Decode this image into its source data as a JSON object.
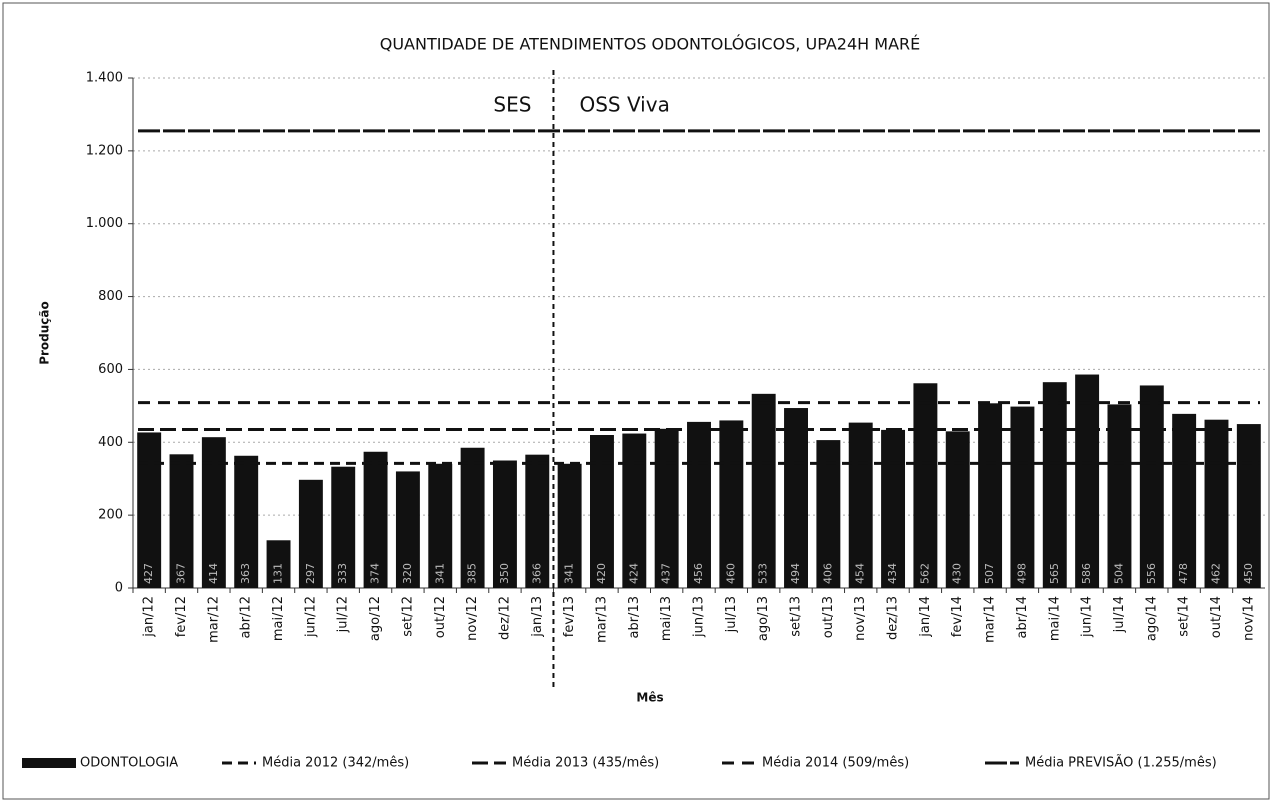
{
  "chart_data": {
    "type": "bar",
    "title": "QUANTIDADE DE ATENDIMENTOS ODONTOLÓGICOS, UPA24H MARÉ",
    "x_label": "Mês",
    "y_label": "Produção",
    "categories": [
      "jan/12",
      "fev/12",
      "mar/12",
      "abr/12",
      "mai/12",
      "jun/12",
      "jul/12",
      "ago/12",
      "set/12",
      "out/12",
      "nov/12",
      "dez/12",
      "jan/13",
      "fev/13",
      "mar/13",
      "abr/13",
      "mai/13",
      "jun/13",
      "jul/13",
      "ago/13",
      "set/13",
      "out/13",
      "nov/13",
      "dez/13",
      "jan/14",
      "fev/14",
      "mar/14",
      "abr/14",
      "mai/14",
      "jun/14",
      "jul/14",
      "ago/14",
      "set/14",
      "out/14",
      "nov/14"
    ],
    "series": [
      {
        "name": "ODONTOLOGIA",
        "color": "#111111",
        "values": [
          427,
          367,
          414,
          363,
          131,
          297,
          333,
          374,
          320,
          341,
          385,
          350,
          366,
          341,
          420,
          424,
          437,
          456,
          460,
          533,
          494,
          406,
          454,
          434,
          562,
          430,
          507,
          498,
          565,
          586,
          504,
          556,
          478,
          462,
          450
        ]
      }
    ],
    "reference_lines": [
      {
        "name": "Média 2012 (342/mês)",
        "value": 342,
        "dash": "10 6"
      },
      {
        "name": "Média 2013 (435/mês)",
        "value": 435,
        "dash": "16 6"
      },
      {
        "name": "Média 2014 (509/mês)",
        "value": 509,
        "dash": "12 8"
      },
      {
        "name": "Média PREVISÃO (1.255/mês)",
        "value": 1255,
        "dash": "22 3"
      }
    ],
    "annotations": [
      "SES",
      "OSS Viva"
    ],
    "ylim": [
      0,
      1400
    ],
    "yticks": [
      0,
      200,
      400,
      600,
      800,
      {
        "value": 1000,
        "label": "1.000"
      },
      {
        "value": 1200,
        "label": "1.200"
      },
      {
        "value": 1400,
        "label": "1.400"
      }
    ],
    "grid": true
  }
}
